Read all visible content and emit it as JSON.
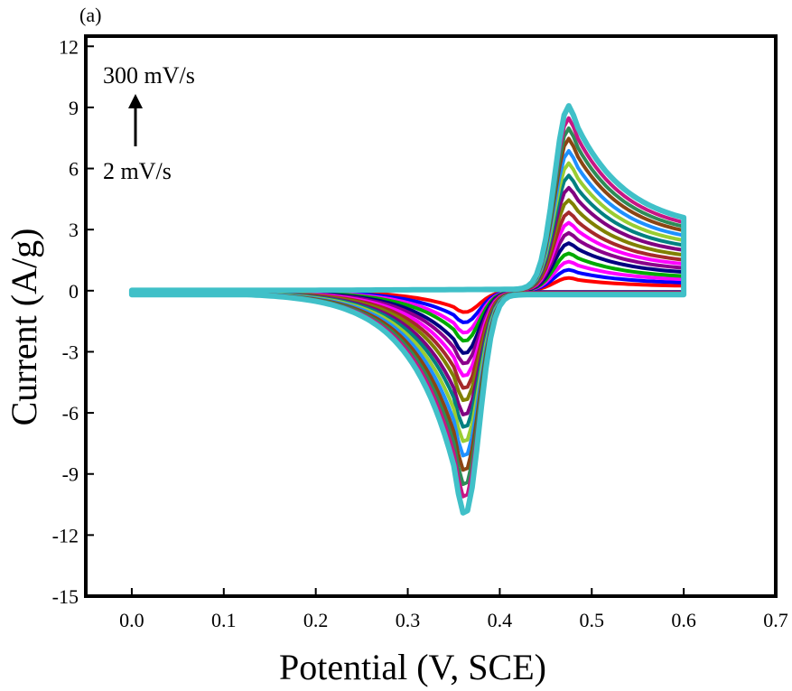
{
  "chart_data": {
    "type": "line",
    "panel_label": "(a)",
    "xlabel": "Potential (V, SCE)",
    "ylabel": "Current (A/g)",
    "xlim": [
      -0.05,
      0.7
    ],
    "ylim": [
      -15,
      12.5
    ],
    "xticks": [
      "0.0",
      "0.1",
      "0.2",
      "0.3",
      "0.4",
      "0.5",
      "0.6",
      "0.7"
    ],
    "yticks": [
      "12",
      "9",
      "6",
      "3",
      "0",
      "-3",
      "-6",
      "-9",
      "-12",
      "-15"
    ],
    "grid": false,
    "annotations": {
      "top": "300 mV/s",
      "bottom": "2 mV/s",
      "arrow": "up"
    },
    "series": [
      {
        "anodic_peak": 0.6,
        "cathodic_peak": -1.0,
        "color": "#ff0000"
      },
      {
        "anodic_peak": 1.0,
        "cathodic_peak": -1.5,
        "color": "#0000ff"
      },
      {
        "anodic_peak": 1.4,
        "cathodic_peak": -2.0,
        "color": "#ff00ff"
      },
      {
        "anodic_peak": 1.8,
        "cathodic_peak": -2.4,
        "color": "#00aa00"
      },
      {
        "anodic_peak": 2.3,
        "cathodic_peak": -3.0,
        "color": "#000080"
      },
      {
        "anodic_peak": 2.8,
        "cathodic_peak": -3.5,
        "color": "#8b008b"
      },
      {
        "anodic_peak": 3.3,
        "cathodic_peak": -4.1,
        "color": "#ff00ff"
      },
      {
        "anodic_peak": 3.8,
        "cathodic_peak": -4.7,
        "color": "#a52a2a"
      },
      {
        "anodic_peak": 4.4,
        "cathodic_peak": -5.3,
        "color": "#808000"
      },
      {
        "anodic_peak": 5.0,
        "cathodic_peak": -6.0,
        "color": "#800080"
      },
      {
        "anodic_peak": 5.6,
        "cathodic_peak": -6.6,
        "color": "#008080"
      },
      {
        "anodic_peak": 6.2,
        "cathodic_peak": -7.3,
        "color": "#9acd32"
      },
      {
        "anodic_peak": 6.8,
        "cathodic_peak": -8.0,
        "color": "#1e90ff"
      },
      {
        "anodic_peak": 7.4,
        "cathodic_peak": -8.7,
        "color": "#8b4513"
      },
      {
        "anodic_peak": 7.9,
        "cathodic_peak": -9.4,
        "color": "#2e8b57"
      },
      {
        "anodic_peak": 8.4,
        "cathodic_peak": -10.0,
        "color": "#c71585"
      },
      {
        "anodic_peak": 9.0,
        "cathodic_peak": -10.8,
        "color": "#40c0c8"
      }
    ]
  }
}
